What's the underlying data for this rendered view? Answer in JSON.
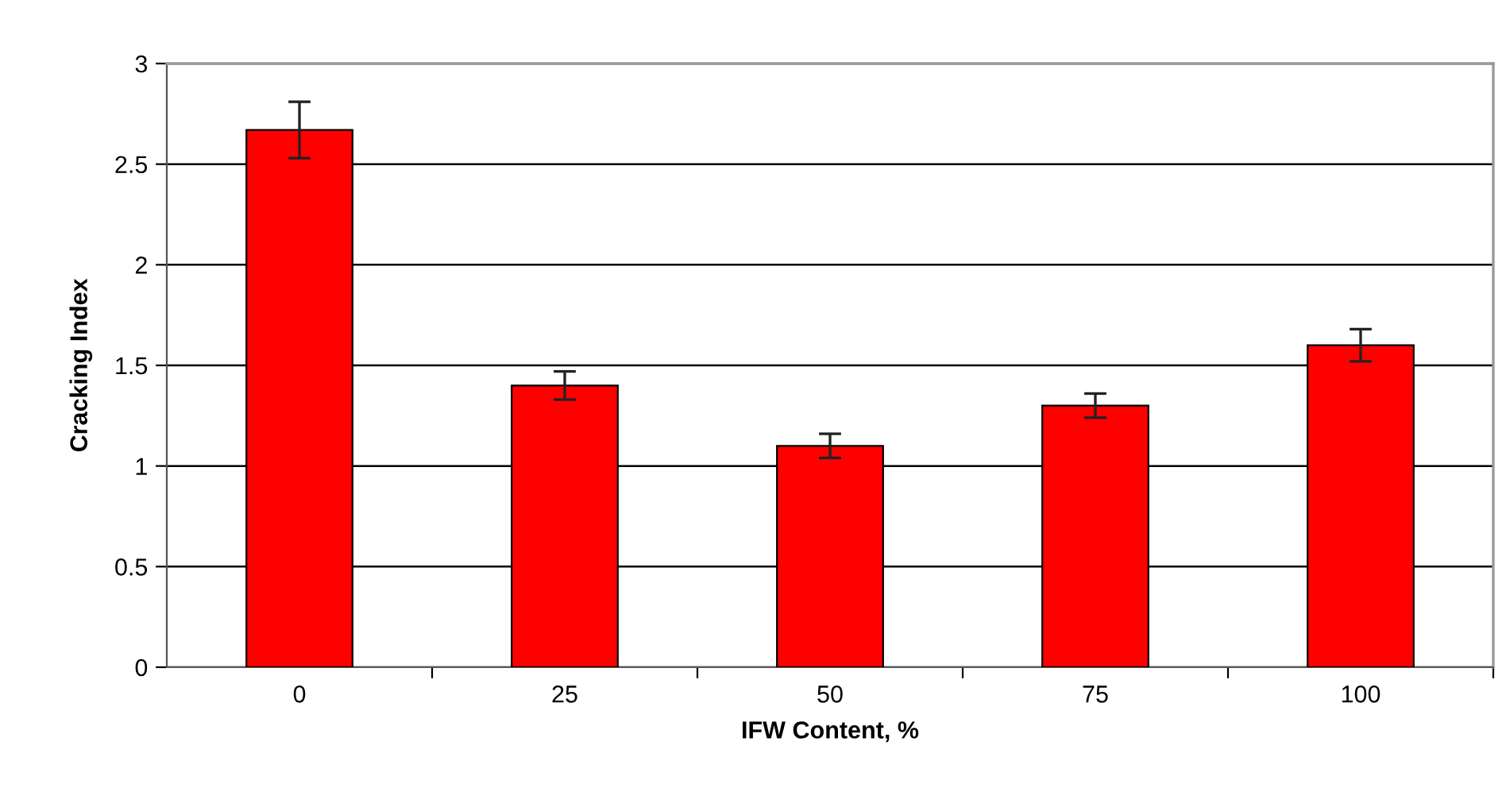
{
  "chart_data": {
    "type": "bar",
    "xlabel": "IFW Content, %",
    "ylabel": "Cracking Index",
    "categories": [
      "0",
      "25",
      "50",
      "75",
      "100"
    ],
    "values": [
      2.67,
      1.4,
      1.1,
      1.3,
      1.6
    ],
    "errors": [
      0.14,
      0.07,
      0.06,
      0.06,
      0.08
    ],
    "color": "#ff0000",
    "ylim": [
      0,
      3
    ],
    "yticks": [
      0,
      0.5,
      1,
      1.5,
      2,
      2.5,
      3
    ],
    "grid": "y",
    "legend": false
  }
}
